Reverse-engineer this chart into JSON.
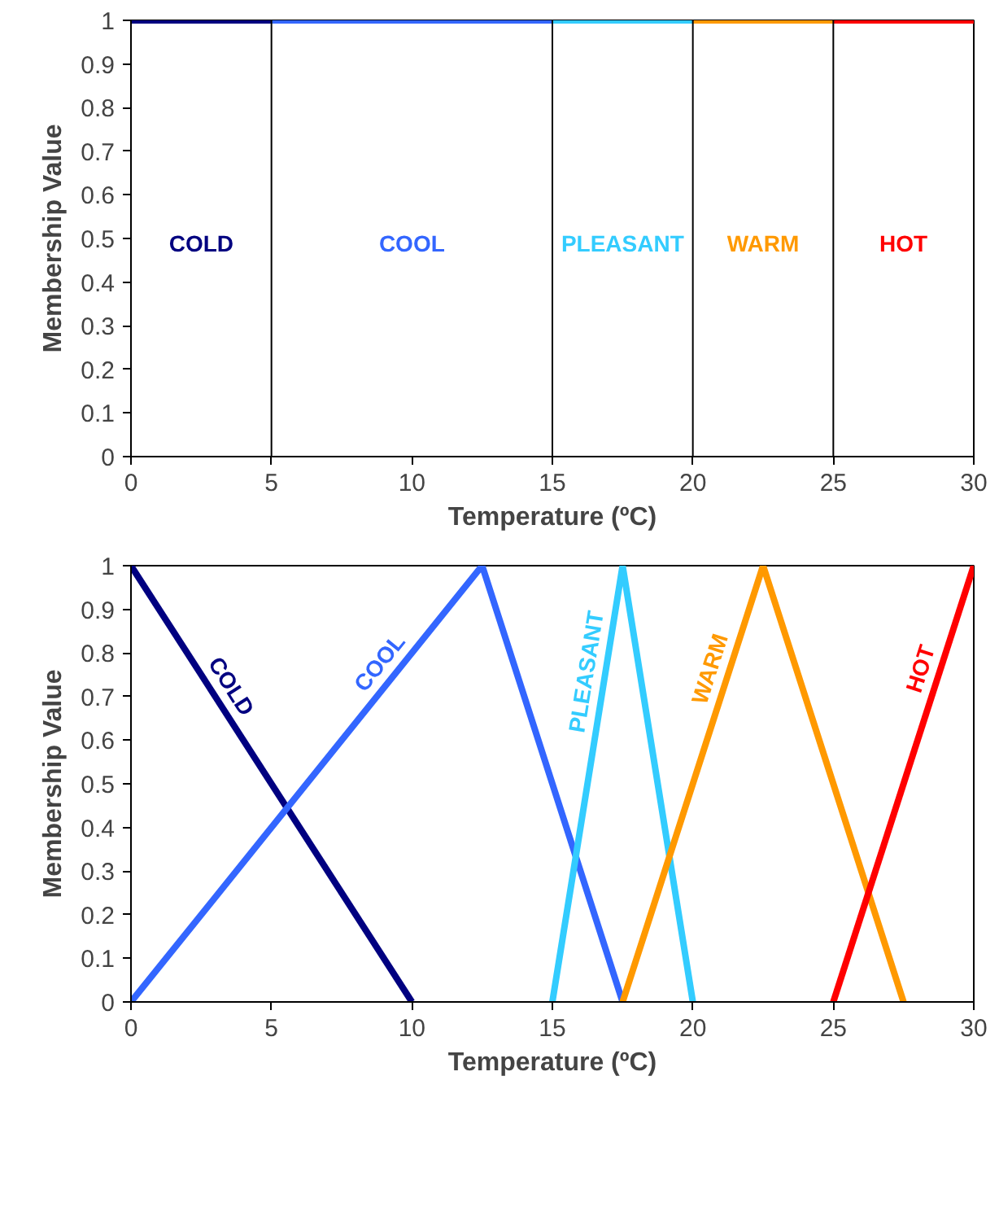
{
  "chart_data": [
    {
      "type": "line",
      "xlabel": "Temperature (ºC)",
      "ylabel": "Membership Value",
      "xlim": [
        0,
        30
      ],
      "ylim": [
        0,
        1
      ],
      "xticks": [
        0,
        5,
        10,
        15,
        20,
        25,
        30
      ],
      "yticks": [
        0,
        0.1,
        0.2,
        0.3,
        0.4,
        0.5,
        0.6,
        0.7,
        0.8,
        0.9,
        1
      ],
      "grid": false,
      "legend": false,
      "ref_lines": [
        {
          "axis": "x",
          "value": 5,
          "color": "#000000"
        },
        {
          "axis": "x",
          "value": 15,
          "color": "#000000"
        },
        {
          "axis": "x",
          "value": 20,
          "color": "#000000"
        },
        {
          "axis": "x",
          "value": 25,
          "color": "#000000"
        }
      ],
      "series": [
        {
          "name": "COLD",
          "color": "#000080",
          "x": [
            0,
            5
          ],
          "values": [
            1,
            1
          ]
        },
        {
          "name": "COOL",
          "color": "#3366ff",
          "x": [
            5,
            15
          ],
          "values": [
            1,
            1
          ]
        },
        {
          "name": "PLEASANT",
          "color": "#33ccff",
          "x": [
            15,
            20
          ],
          "values": [
            1,
            1
          ]
        },
        {
          "name": "WARM",
          "color": "#ff9900",
          "x": [
            20,
            25
          ],
          "values": [
            1,
            1
          ]
        },
        {
          "name": "HOT",
          "color": "#ff0000",
          "x": [
            25,
            30
          ],
          "values": [
            1,
            1
          ]
        }
      ]
    },
    {
      "type": "line",
      "xlabel": "Temperature (ºC)",
      "ylabel": "Membership Value",
      "xlim": [
        0,
        30
      ],
      "ylim": [
        0,
        1
      ],
      "xticks": [
        0,
        5,
        10,
        15,
        20,
        25,
        30
      ],
      "yticks": [
        0,
        0.1,
        0.2,
        0.3,
        0.4,
        0.5,
        0.6,
        0.7,
        0.8,
        0.9,
        1
      ],
      "grid": false,
      "legend": false,
      "marker": "none",
      "line_style": "solid",
      "series": [
        {
          "name": "COLD",
          "color": "#000080",
          "x": [
            0,
            10
          ],
          "values": [
            1,
            0
          ]
        },
        {
          "name": "COOL",
          "color": "#3366ff",
          "x": [
            0,
            12.5,
            17.5
          ],
          "values": [
            0,
            1,
            0
          ]
        },
        {
          "name": "PLEASANT",
          "color": "#33ccff",
          "x": [
            15,
            17.5,
            20
          ],
          "values": [
            0,
            1,
            0
          ]
        },
        {
          "name": "WARM",
          "color": "#ff9900",
          "x": [
            17.5,
            22.5,
            27.5
          ],
          "values": [
            0,
            1,
            0
          ]
        },
        {
          "name": "HOT",
          "color": "#ff0000",
          "x": [
            25,
            30
          ],
          "values": [
            0,
            1
          ]
        }
      ]
    }
  ]
}
